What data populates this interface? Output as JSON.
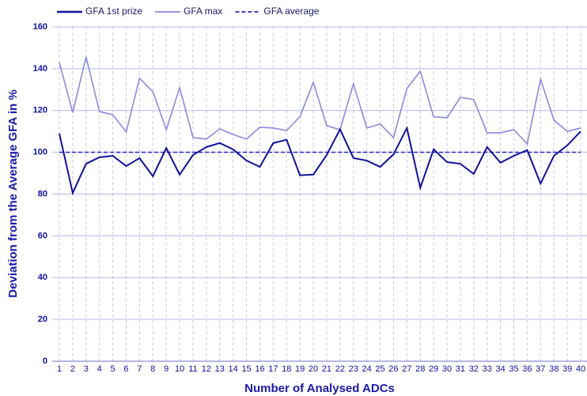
{
  "chart_data": {
    "type": "line",
    "x_label": "Number of Analysed ADCs",
    "y_label": "Deviation from the Average GFA in %",
    "categories": [
      "1",
      "2",
      "3",
      "4",
      "5",
      "6",
      "7",
      "8",
      "9",
      "10",
      "11",
      "12",
      "13",
      "14",
      "15",
      "16",
      "17",
      "18",
      "19",
      "20",
      "21",
      "22",
      "23",
      "24",
      "25",
      "26",
      "27",
      "28",
      "29",
      "30",
      "31",
      "32",
      "33",
      "34",
      "35",
      "36",
      "37",
      "38",
      "39",
      "40"
    ],
    "series": [
      {
        "name": "GFA 1st prize",
        "color": "#10109a",
        "dash": false,
        "values": [
          109,
          80.5,
          94.5,
          97.6,
          98.3,
          93.4,
          97.2,
          88.5,
          102,
          89.3,
          98.7,
          102.5,
          104.4,
          101.4,
          96,
          93,
          104.4,
          106,
          89,
          89.3,
          98.7,
          111,
          97.2,
          96,
          93,
          99,
          111.6,
          83,
          101.4,
          95.3,
          94.5,
          89.6,
          102.5,
          95,
          98.3,
          101,
          85,
          98.3,
          103.3,
          110
        ]
      },
      {
        "name": "GFA max",
        "color": "#8a8ae0",
        "dash": false,
        "values": [
          143,
          119,
          145.6,
          119.5,
          118,
          109.7,
          135.4,
          129,
          110.8,
          130.9,
          107,
          106.3,
          111.2,
          108.5,
          106.3,
          112,
          111.6,
          110.4,
          117,
          133.5,
          112.7,
          110.8,
          132.8,
          111.6,
          113.5,
          107,
          130.5,
          138.8,
          117,
          116.5,
          126.3,
          125.2,
          109.3,
          109.3,
          110.8,
          104,
          135,
          115.4,
          110,
          111.6
        ]
      },
      {
        "name": "GFA average",
        "color": "#2a2ab8",
        "dash": true,
        "values": [
          100,
          100,
          100,
          100,
          100,
          100,
          100,
          100,
          100,
          100,
          100,
          100,
          100,
          100,
          100,
          100,
          100,
          100,
          100,
          100,
          100,
          100,
          100,
          100,
          100,
          100,
          100,
          100,
          100,
          100,
          100,
          100,
          100,
          100,
          100,
          100,
          100,
          100,
          100,
          100
        ]
      }
    ],
    "ylim": [
      0,
      160
    ],
    "yticks": [
      0,
      20,
      40,
      60,
      80,
      100,
      120,
      140,
      160
    ],
    "grid": true,
    "legend": "top-left"
  }
}
